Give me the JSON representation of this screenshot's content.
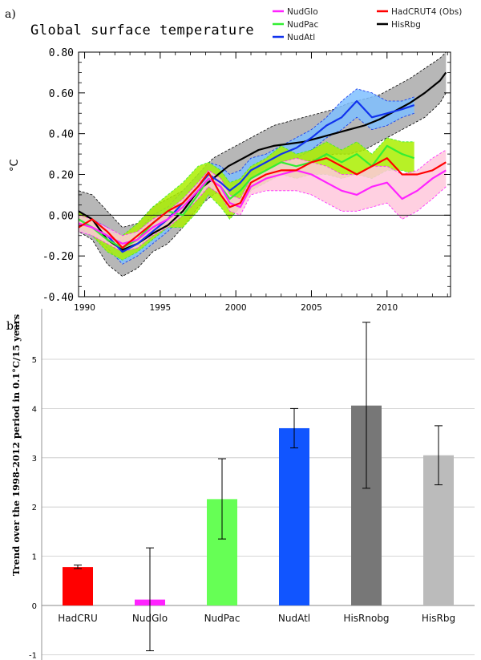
{
  "panel_a": {
    "label": "a)",
    "title": "Global surface temperature",
    "ylabel": "°C",
    "legend": [
      {
        "name": "NudGlo",
        "color": "#ff22ff"
      },
      {
        "name": "NudPac",
        "color": "#33ee33"
      },
      {
        "name": "NudAtl",
        "color": "#1133ee"
      },
      {
        "name": "HadCRUT4 (Obs)",
        "color": "#ff0000"
      },
      {
        "name": "HisRbg",
        "color": "#000000"
      }
    ]
  },
  "panel_b": {
    "label": "b)",
    "ylabel": "Trend over the 1998-2012 period in 0.1°C/15 years"
  },
  "chart_data": [
    {
      "type": "line",
      "title": "Global surface temperature",
      "xlabel": "",
      "ylabel": "°C",
      "xlim": [
        1989.6,
        2014.2
      ],
      "ylim": [
        -0.4,
        0.8
      ],
      "xticks": [
        1990,
        1995,
        2000,
        2005,
        2010
      ],
      "yticks": [
        "-0.40",
        "-0.20",
        "0.00",
        "0.20",
        "0.40",
        "0.60",
        "0.80"
      ],
      "yticks_values": [
        -0.4,
        -0.2,
        0.0,
        0.2,
        0.4,
        0.6,
        0.8
      ],
      "zero_line": true,
      "legend_position": "top-right",
      "series": [
        {
          "name": "HisRbg",
          "color": "#000000",
          "shade": "#aaaaaa",
          "x": [
            1989.6,
            1990.5,
            1991.5,
            1992.5,
            1993.5,
            1994.5,
            1995.5,
            1996.5,
            1997.5,
            1998.5,
            1999.5,
            2000.5,
            2001.5,
            2002.5,
            2003.5,
            2004.5,
            2005.5,
            2006.5,
            2007.5,
            2008.5,
            2009.5,
            2010.5,
            2011.5,
            2012.5,
            2013.5,
            2013.9
          ],
          "y": [
            0.02,
            -0.02,
            -0.12,
            -0.17,
            -0.14,
            -0.09,
            -0.05,
            0.02,
            0.12,
            0.18,
            0.24,
            0.28,
            0.32,
            0.34,
            0.35,
            0.36,
            0.38,
            0.4,
            0.42,
            0.44,
            0.47,
            0.51,
            0.55,
            0.6,
            0.66,
            0.7
          ],
          "upper": [
            0.12,
            0.1,
            0.02,
            -0.06,
            -0.04,
            0.04,
            0.08,
            0.12,
            0.2,
            0.28,
            0.32,
            0.36,
            0.4,
            0.44,
            0.46,
            0.48,
            0.5,
            0.52,
            0.55,
            0.57,
            0.59,
            0.63,
            0.67,
            0.72,
            0.77,
            0.8
          ],
          "lower": [
            -0.08,
            -0.12,
            -0.24,
            -0.3,
            -0.26,
            -0.18,
            -0.14,
            -0.06,
            0.04,
            0.1,
            0.14,
            0.18,
            0.22,
            0.24,
            0.25,
            0.26,
            0.28,
            0.3,
            0.3,
            0.32,
            0.36,
            0.4,
            0.44,
            0.48,
            0.55,
            0.6
          ]
        },
        {
          "name": "NudAtl",
          "color": "#1133ee",
          "shade": "#7fbfff",
          "x": [
            1989.6,
            1990.5,
            1991.5,
            1992.5,
            1993.5,
            1994.5,
            1995.5,
            1996.5,
            1997.5,
            1998.2,
            1999,
            1999.6,
            2000.3,
            2001,
            2002,
            2003,
            2004,
            2005,
            2006,
            2007,
            2008,
            2009,
            2010,
            2011,
            2011.8
          ],
          "y": [
            -0.02,
            -0.06,
            -0.1,
            -0.18,
            -0.14,
            -0.08,
            -0.02,
            0.06,
            0.14,
            0.2,
            0.16,
            0.12,
            0.16,
            0.22,
            0.26,
            0.3,
            0.33,
            0.38,
            0.44,
            0.48,
            0.56,
            0.48,
            0.5,
            0.52,
            0.54
          ],
          "upper": [
            0.02,
            -0.02,
            -0.06,
            -0.12,
            -0.08,
            0.0,
            0.04,
            0.12,
            0.2,
            0.26,
            0.24,
            0.2,
            0.22,
            0.28,
            0.3,
            0.34,
            0.38,
            0.42,
            0.48,
            0.56,
            0.62,
            0.6,
            0.56,
            0.56,
            0.58
          ],
          "lower": [
            -0.06,
            -0.1,
            -0.16,
            -0.24,
            -0.2,
            -0.14,
            -0.08,
            0.0,
            0.08,
            0.14,
            0.1,
            0.06,
            0.1,
            0.16,
            0.2,
            0.24,
            0.28,
            0.32,
            0.38,
            0.42,
            0.48,
            0.42,
            0.44,
            0.48,
            0.5
          ]
        },
        {
          "name": "NudPac",
          "color": "#33ee33",
          "shade": "#aaee00",
          "x": [
            1989.6,
            1990.5,
            1991.5,
            1992.5,
            1993.5,
            1994.5,
            1995.5,
            1996.5,
            1997.5,
            1998.2,
            1999,
            1999.6,
            2000.3,
            2001,
            2002,
            2003,
            2004,
            2005,
            2006,
            2007,
            2008,
            2009,
            2010,
            2011,
            2011.8
          ],
          "y": [
            -0.02,
            -0.06,
            -0.12,
            -0.16,
            -0.12,
            -0.04,
            0.02,
            0.0,
            0.1,
            0.18,
            0.14,
            0.08,
            0.12,
            0.18,
            0.22,
            0.26,
            0.24,
            0.26,
            0.3,
            0.26,
            0.3,
            0.24,
            0.34,
            0.3,
            0.28
          ],
          "upper": [
            0.02,
            -0.02,
            -0.08,
            -0.1,
            -0.04,
            0.04,
            0.1,
            0.16,
            0.24,
            0.26,
            0.22,
            0.16,
            0.18,
            0.24,
            0.28,
            0.34,
            0.3,
            0.32,
            0.36,
            0.32,
            0.36,
            0.3,
            0.38,
            0.36,
            0.36
          ],
          "lower": [
            -0.06,
            -0.1,
            -0.18,
            -0.22,
            -0.18,
            -0.12,
            -0.06,
            -0.06,
            0.02,
            0.1,
            0.04,
            -0.02,
            0.04,
            0.12,
            0.16,
            0.2,
            0.18,
            0.2,
            0.2,
            0.18,
            0.2,
            0.18,
            0.22,
            0.22,
            0.2
          ]
        },
        {
          "name": "NudGlo",
          "color": "#ff22ff",
          "shade": "#ffc8dc",
          "x": [
            1989.6,
            1990.5,
            1991.5,
            1992.5,
            1993.5,
            1994.5,
            1995.5,
            1996.5,
            1997.5,
            1998.2,
            1999,
            1999.6,
            2000.3,
            2001,
            2002,
            2003,
            2004,
            2005,
            2006,
            2007,
            2008,
            2009,
            2010,
            2011,
            2012,
            2013,
            2013.9
          ],
          "y": [
            -0.04,
            -0.06,
            -0.1,
            -0.14,
            -0.12,
            -0.06,
            -0.02,
            0.04,
            0.12,
            0.18,
            0.14,
            0.06,
            0.04,
            0.14,
            0.18,
            0.2,
            0.22,
            0.2,
            0.16,
            0.12,
            0.1,
            0.14,
            0.16,
            0.08,
            0.12,
            0.18,
            0.22
          ],
          "upper": [
            0.0,
            -0.02,
            -0.06,
            -0.1,
            -0.08,
            -0.02,
            0.02,
            0.08,
            0.16,
            0.22,
            0.18,
            0.1,
            0.08,
            0.18,
            0.22,
            0.26,
            0.28,
            0.26,
            0.24,
            0.2,
            0.2,
            0.24,
            0.24,
            0.2,
            0.22,
            0.28,
            0.32
          ],
          "lower": [
            -0.08,
            -0.1,
            -0.14,
            -0.18,
            -0.16,
            -0.1,
            -0.06,
            0.0,
            0.08,
            0.14,
            0.1,
            0.02,
            0.0,
            0.1,
            0.12,
            0.12,
            0.12,
            0.1,
            0.06,
            0.02,
            0.02,
            0.04,
            0.06,
            -0.02,
            0.02,
            0.08,
            0.14
          ]
        },
        {
          "name": "HadCRUT4 (Obs)",
          "color": "#ff0000",
          "shade": null,
          "x": [
            1989.6,
            1990.5,
            1991.5,
            1992.5,
            1993.5,
            1994.5,
            1995.5,
            1996.5,
            1997.5,
            1998.2,
            1999,
            1999.6,
            2000.3,
            2001,
            2002,
            2003,
            2004,
            2005,
            2006,
            2007,
            2008,
            2009,
            2010,
            2011,
            2012,
            2013,
            2013.9
          ],
          "y": [
            -0.06,
            -0.02,
            -0.08,
            -0.16,
            -0.1,
            -0.04,
            0.02,
            0.06,
            0.14,
            0.21,
            0.1,
            0.04,
            0.06,
            0.16,
            0.2,
            0.22,
            0.22,
            0.26,
            0.28,
            0.24,
            0.2,
            0.24,
            0.28,
            0.2,
            0.2,
            0.22,
            0.26
          ]
        }
      ]
    },
    {
      "type": "bar",
      "title": "",
      "xlabel": "",
      "ylabel": "Trend over the 1998-2012 period in 0.1°C/15 years",
      "ylim": [
        -1,
        5.8
      ],
      "yticks": [
        -1,
        0,
        1,
        2,
        3,
        4,
        5
      ],
      "grid": true,
      "categories": [
        "HadCRU",
        "NudGlo",
        "NudPac",
        "NudAtl",
        "HisRnobg",
        "HisRbg"
      ],
      "values": [
        0.78,
        0.12,
        2.16,
        3.6,
        4.06,
        3.05
      ],
      "error_low": [
        0.75,
        -0.92,
        1.35,
        3.2,
        2.38,
        2.45
      ],
      "error_high": [
        0.82,
        1.17,
        2.98,
        4.0,
        5.75,
        3.65
      ],
      "colors": [
        "#ff0000",
        "#ff22ff",
        "#66ff55",
        "#1155ff",
        "#777777",
        "#bbbbbb"
      ]
    }
  ]
}
